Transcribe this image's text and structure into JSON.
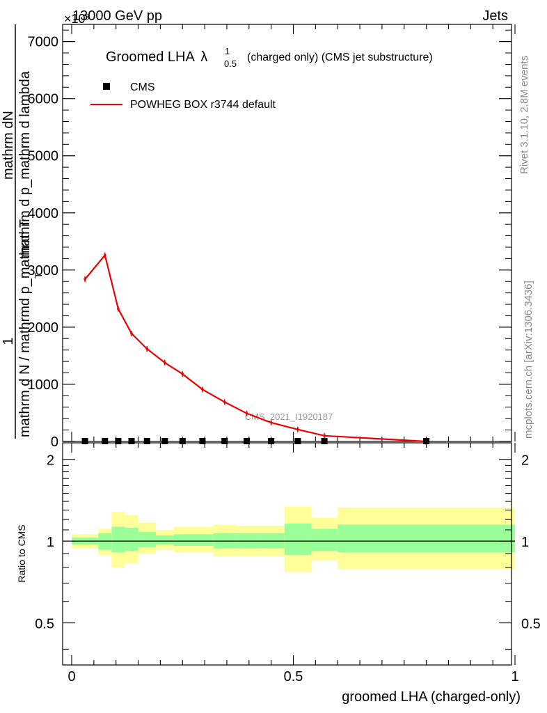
{
  "header": {
    "energy_label": "13000 GeV pp",
    "process_label": "Jets",
    "exponent_label": "×10³",
    "rivet_label": "Rivet 3.1.10,  2.8M events",
    "mcplots_label": "mcplots.cern.ch [arXiv:1306.3436]",
    "watermark": "CMS_2021_I1920187"
  },
  "colors": {
    "mc_line": "#ee0000",
    "data_marker": "#000000",
    "band_inner": "#99ff99",
    "band_outer": "#ffff99",
    "axis": "#000000",
    "watermark": "#999999",
    "side_text": "#888888"
  },
  "chart_data": [
    {
      "type": "line",
      "panel": "main",
      "title": "Groomed LHA",
      "title_symbol": "λ",
      "title_superscript": "1",
      "title_subscript": "0.5",
      "title_suffix": "(charged only) (CMS jet substructure)",
      "ylabel_numerator": "mathrm dN",
      "ylabel_one": "1",
      "ylabel_top": "mathrm d p_mathrm d lambda",
      "ylabel_bottom": "mathrm d N / mathrmd p_mathrm T",
      "ylabel_subscript": "T",
      "xlabel": "groomed LHA (charged-only)",
      "xlim": [
        0,
        1
      ],
      "ylim": [
        0,
        7300
      ],
      "y_tick_values": [
        0,
        1000,
        2000,
        3000,
        4000,
        5000,
        6000,
        7000
      ],
      "y_tick_labels": [
        "0",
        "1000",
        "2000",
        "3000",
        "4000",
        "5000",
        "6000",
        "7000"
      ],
      "legend_position": "top-left",
      "series": [
        {
          "name": "CMS",
          "style": "marker",
          "x": [
            0.03,
            0.075,
            0.105,
            0.135,
            0.17,
            0.21,
            0.25,
            0.295,
            0.345,
            0.395,
            0.45,
            0.51,
            0.57,
            0.8
          ],
          "y": [
            0,
            0,
            0,
            0,
            0,
            0,
            0,
            0,
            0,
            0,
            0,
            0,
            0,
            0
          ]
        },
        {
          "name": "POWHEG BOX r3744 default",
          "style": "line",
          "x": [
            0.03,
            0.075,
            0.105,
            0.135,
            0.17,
            0.21,
            0.25,
            0.295,
            0.345,
            0.395,
            0.45,
            0.51,
            0.57,
            0.8
          ],
          "y": [
            2840,
            3260,
            2320,
            1890,
            1620,
            1380,
            1180,
            910,
            690,
            490,
            330,
            210,
            100,
            0
          ]
        }
      ]
    },
    {
      "type": "area",
      "panel": "ratio",
      "ylabel": "Ratio to CMS",
      "xlim": [
        0,
        1
      ],
      "ylim": [
        0.35,
        2.3
      ],
      "x_tick_values": [
        0,
        0.5,
        1
      ],
      "x_tick_labels": [
        "0",
        "0.5",
        "1"
      ],
      "y_tick_values": [
        0.5,
        1,
        2
      ],
      "y_tick_labels": [
        "0.5",
        "1",
        "2"
      ],
      "reference_line": 1,
      "bins": [
        {
          "x0": 0.0,
          "x1": 0.06,
          "inner": [
            0.97,
            1.03
          ],
          "outer": [
            0.94,
            1.06
          ]
        },
        {
          "x0": 0.06,
          "x1": 0.09,
          "inner": [
            0.93,
            1.07
          ],
          "outer": [
            0.89,
            1.11
          ]
        },
        {
          "x0": 0.09,
          "x1": 0.12,
          "inner": [
            0.91,
            1.13
          ],
          "outer": [
            0.8,
            1.28
          ]
        },
        {
          "x0": 0.12,
          "x1": 0.15,
          "inner": [
            0.92,
            1.12
          ],
          "outer": [
            0.83,
            1.25
          ]
        },
        {
          "x0": 0.15,
          "x1": 0.19,
          "inner": [
            0.95,
            1.08
          ],
          "outer": [
            0.9,
            1.17
          ]
        },
        {
          "x0": 0.19,
          "x1": 0.23,
          "inner": [
            0.97,
            1.05
          ],
          "outer": [
            0.93,
            1.1
          ]
        },
        {
          "x0": 0.23,
          "x1": 0.27,
          "inner": [
            0.96,
            1.06
          ],
          "outer": [
            0.91,
            1.13
          ]
        },
        {
          "x0": 0.27,
          "x1": 0.32,
          "inner": [
            0.96,
            1.06
          ],
          "outer": [
            0.91,
            1.13
          ]
        },
        {
          "x0": 0.32,
          "x1": 0.37,
          "inner": [
            0.94,
            1.07
          ],
          "outer": [
            0.88,
            1.15
          ]
        },
        {
          "x0": 0.37,
          "x1": 0.42,
          "inner": [
            0.94,
            1.07
          ],
          "outer": [
            0.88,
            1.14
          ]
        },
        {
          "x0": 0.42,
          "x1": 0.48,
          "inner": [
            0.94,
            1.07
          ],
          "outer": [
            0.88,
            1.14
          ]
        },
        {
          "x0": 0.48,
          "x1": 0.54,
          "inner": [
            0.89,
            1.16
          ],
          "outer": [
            0.77,
            1.34
          ]
        },
        {
          "x0": 0.54,
          "x1": 0.6,
          "inner": [
            0.92,
            1.11
          ],
          "outer": [
            0.85,
            1.22
          ]
        },
        {
          "x0": 0.6,
          "x1": 1.0,
          "inner": [
            0.91,
            1.15
          ],
          "outer": [
            0.79,
            1.33
          ]
        }
      ]
    }
  ]
}
